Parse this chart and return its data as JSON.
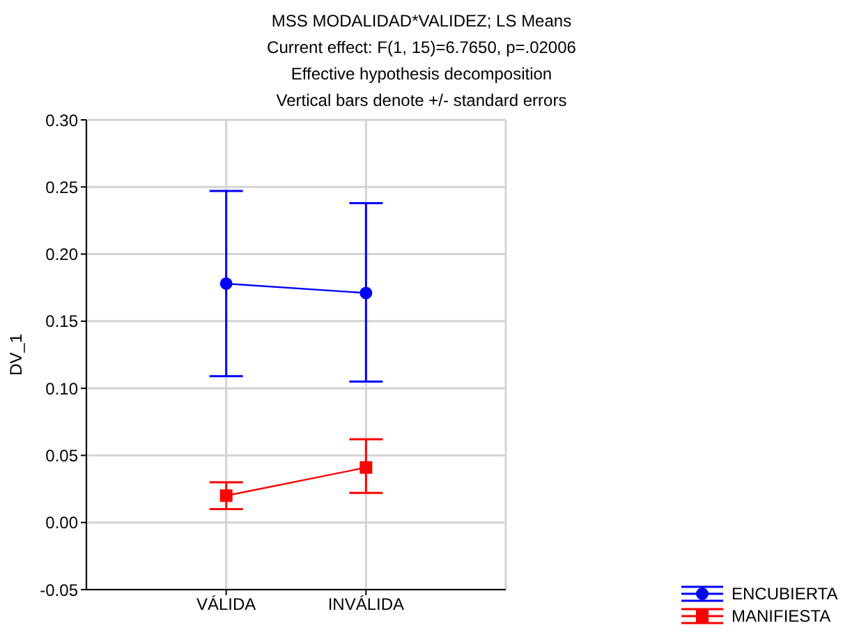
{
  "chart_data": {
    "type": "line",
    "title": "MSS MODALIDAD*VALIDEZ; LS Means",
    "subtitle": "Current effect: F(1, 15)=6.7650, p=.02006",
    "annotations": [
      "Effective hypothesis decomposition",
      "Vertical bars denote +/- standard errors"
    ],
    "ylabel": "DV_1",
    "categories": [
      "VÁLIDA",
      "INVÁLIDA"
    ],
    "series": [
      {
        "name": "ENCUBIERTA",
        "color": "#0000ff",
        "marker": "circle",
        "values": [
          0.178,
          0.171
        ],
        "errors": [
          [
            0.109,
            0.247
          ],
          [
            0.105,
            0.238
          ]
        ]
      },
      {
        "name": "MANIFIESTA",
        "color": "#ff0000",
        "marker": "square",
        "values": [
          0.02,
          0.041
        ],
        "errors": [
          [
            0.01,
            0.03
          ],
          [
            0.022,
            0.062
          ]
        ]
      }
    ],
    "ylim": [
      -0.05,
      0.3
    ],
    "yticks": [
      {
        "value": -0.05,
        "label": "-0.05"
      },
      {
        "value": 0,
        "label": "0.00"
      },
      {
        "value": 0.05,
        "label": "0.05"
      },
      {
        "value": 0.1,
        "label": "0.10"
      },
      {
        "value": 0.15,
        "label": "0.15"
      },
      {
        "value": 0.2,
        "label": "0.20"
      },
      {
        "value": 0.25,
        "label": "0.25"
      },
      {
        "value": 0.3,
        "label": "0.30"
      }
    ],
    "grid": true,
    "legend": "bottom right"
  }
}
